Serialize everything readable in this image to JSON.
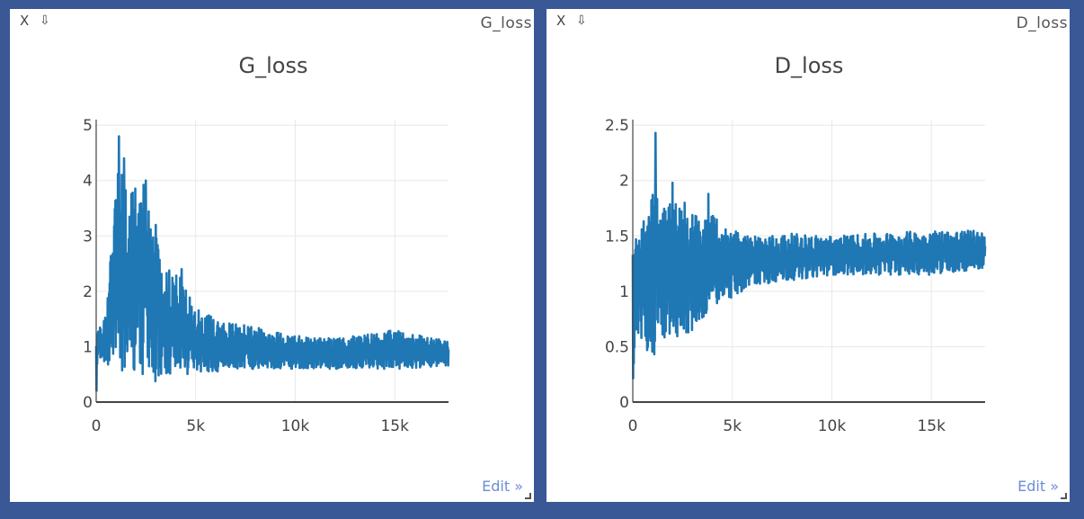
{
  "panes": [
    {
      "window_title": "G_loss",
      "close_label": "X",
      "download_label": "⇩",
      "edit_label": "Edit »"
    },
    {
      "window_title": "D_loss",
      "close_label": "X",
      "download_label": "⇩",
      "edit_label": "Edit »"
    }
  ],
  "colors": {
    "line": "#1f77b4",
    "background": "#3a5796",
    "grid": "#e8e8e8",
    "axis": "#444444",
    "edit_link": "#6b8dd6"
  },
  "chart_data": [
    {
      "type": "line",
      "title": "G_loss",
      "xlabel": "",
      "ylabel": "",
      "xlim": [
        0,
        17700
      ],
      "ylim": [
        0,
        5.1
      ],
      "x_ticks": [
        0,
        5000,
        10000,
        15000
      ],
      "x_tick_labels": [
        "0",
        "5k",
        "10k",
        "15k"
      ],
      "y_ticks": [
        0,
        1,
        2,
        3,
        4,
        5
      ],
      "y_tick_labels": [
        "0",
        "1",
        "2",
        "3",
        "4",
        "5"
      ],
      "grid": true,
      "series": [
        {
          "envelope_x": [
            0,
            100,
            300,
            600,
            1000,
            1500,
            2000,
            2500,
            3000,
            3500,
            4000,
            5000,
            6000,
            8000,
            10000,
            12000,
            15000,
            17700
          ],
          "envelope_high": [
            1.5,
            1.4,
            1.3,
            2.1,
            4.6,
            3.9,
            4.0,
            3.9,
            3.1,
            2.4,
            2.4,
            1.7,
            1.5,
            1.35,
            1.2,
            1.15,
            1.3,
            1.1
          ],
          "envelope_low": [
            0,
            0.7,
            0.8,
            0.6,
            0.5,
            0.45,
            0.45,
            0.45,
            0.35,
            0.4,
            0.45,
            0.55,
            0.55,
            0.6,
            0.6,
            0.6,
            0.6,
            0.65
          ],
          "spikes": [
            [
              1150,
              4.8
            ],
            [
              1400,
              4.4
            ],
            [
              2500,
              4.0
            ],
            [
              3000,
              3.2
            ],
            [
              4300,
              2.4
            ]
          ]
        }
      ]
    },
    {
      "type": "line",
      "title": "D_loss",
      "xlabel": "",
      "ylabel": "",
      "xlim": [
        0,
        17700
      ],
      "ylim": [
        0,
        2.55
      ],
      "x_ticks": [
        0,
        5000,
        10000,
        15000
      ],
      "x_tick_labels": [
        "0",
        "5k",
        "10k",
        "15k"
      ],
      "y_ticks": [
        0,
        0.5,
        1,
        1.5,
        2,
        2.5
      ],
      "y_tick_labels": [
        "0",
        "0.5",
        "1",
        "1.5",
        "2",
        "2.5"
      ],
      "grid": true,
      "series": [
        {
          "envelope_x": [
            0,
            100,
            300,
            600,
            1000,
            1500,
            2000,
            2500,
            3000,
            3500,
            4000,
            5000,
            6000,
            8000,
            10000,
            12000,
            15000,
            17700
          ],
          "envelope_high": [
            1.6,
            1.6,
            1.6,
            1.75,
            1.9,
            1.8,
            1.9,
            1.8,
            1.7,
            1.7,
            1.7,
            1.55,
            1.5,
            1.52,
            1.5,
            1.52,
            1.55,
            1.55
          ],
          "envelope_low": [
            0,
            0.4,
            0.6,
            0.5,
            0.4,
            0.55,
            0.55,
            0.6,
            0.65,
            0.75,
            0.85,
            0.95,
            1.05,
            1.1,
            1.15,
            1.15,
            1.15,
            1.2
          ],
          "spikes": [
            [
              1150,
              2.43
            ],
            [
              1000,
              1.87
            ],
            [
              2000,
              1.98
            ],
            [
              3800,
              1.88
            ],
            [
              2600,
              1.8
            ]
          ]
        }
      ]
    }
  ]
}
